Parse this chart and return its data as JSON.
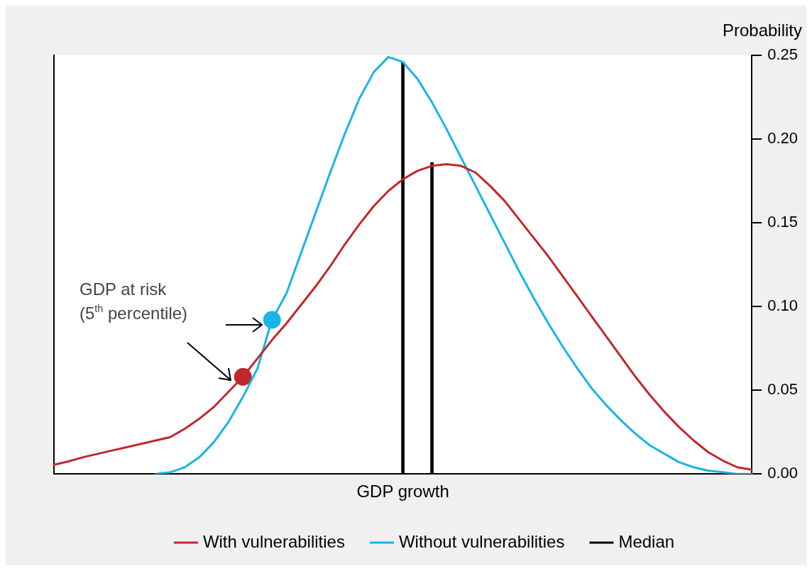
{
  "chart_data": {
    "type": "line",
    "xlabel": "GDP growth",
    "ylabel": "Probability",
    "categories": [
      null,
      null,
      null,
      null,
      null,
      null,
      null,
      null,
      null,
      null,
      null,
      null,
      null,
      null,
      null,
      null,
      null,
      null,
      null,
      null,
      null,
      null,
      null,
      null,
      null,
      null,
      null,
      null,
      null,
      null,
      null,
      null,
      null,
      null,
      null,
      null,
      null,
      null,
      null,
      null,
      null,
      null,
      null,
      null,
      null,
      null,
      null,
      null,
      null
    ],
    "ylim": [
      0,
      0.25
    ],
    "yticks": [
      {
        "value": 0,
        "label": "0.00"
      },
      {
        "value": 0.05,
        "label": "0.05"
      },
      {
        "value": 0.1,
        "label": "0.10"
      },
      {
        "value": 0.15,
        "label": "0.15"
      },
      {
        "value": 0.2,
        "label": "0.20"
      },
      {
        "value": 0.25,
        "label": "0.25"
      }
    ],
    "tick_labels": "y",
    "legend": "bottom",
    "marker": "none",
    "line_style": "solid",
    "series": [
      {
        "name": "With vulnerabilities",
        "color": "#c0282d",
        "values": [
          0.0055,
          0.0075,
          0.01,
          0.012,
          0.014,
          0.016,
          0.018,
          0.02,
          0.022,
          0.027,
          0.033,
          0.04,
          0.049,
          0.058,
          0.069,
          0.08,
          0.09,
          0.101,
          0.112,
          0.124,
          0.137,
          0.149,
          0.16,
          0.169,
          0.176,
          0.181,
          0.184,
          0.185,
          0.184,
          0.18,
          0.172,
          0.163,
          0.152,
          0.141,
          0.13,
          0.118,
          0.106,
          0.094,
          0.082,
          0.07,
          0.058,
          0.047,
          0.037,
          0.028,
          0.02,
          0.013,
          0.008,
          0.004,
          0.0025
        ]
      },
      {
        "name": "Without vulnerabilities",
        "color": "#19b4ea",
        "values": [
          null,
          null,
          null,
          null,
          null,
          null,
          null,
          0,
          0.001,
          0.004,
          0.01,
          0.019,
          0.031,
          0.046,
          0.063,
          0.092,
          0.108,
          0.132,
          0.156,
          0.18,
          0.203,
          0.224,
          0.24,
          0.249,
          0.246,
          0.236,
          0.222,
          0.206,
          0.189,
          0.172,
          0.155,
          0.138,
          0.121,
          0.105,
          0.09,
          0.076,
          0.063,
          0.051,
          0.041,
          0.032,
          0.024,
          0.017,
          0.012,
          0.007,
          0.004,
          0.002,
          0.001,
          0,
          0
        ]
      },
      {
        "name": "Median",
        "type": "bar",
        "color": "#000000",
        "values": [
          null,
          null,
          null,
          null,
          null,
          null,
          null,
          null,
          null,
          null,
          null,
          null,
          null,
          null,
          null,
          null,
          null,
          null,
          null,
          null,
          null,
          null,
          null,
          null,
          0.246,
          null,
          0.186,
          null,
          null,
          null,
          null,
          null,
          null,
          null,
          null,
          null,
          null,
          null,
          null,
          null,
          null,
          null,
          null,
          null,
          null,
          null,
          null,
          null,
          null
        ]
      },
      {
        "marker": "circle",
        "color": "#c0282d",
        "values": [
          null,
          null,
          null,
          null,
          null,
          null,
          null,
          null,
          null,
          null,
          null,
          null,
          null,
          0.058,
          null,
          null,
          null,
          null,
          null,
          null,
          null,
          null,
          null,
          null,
          null,
          null,
          null,
          null,
          null,
          null,
          null,
          null,
          null,
          null,
          null,
          null,
          null,
          null,
          null,
          null,
          null,
          null,
          null,
          null,
          null,
          null,
          null,
          null,
          null
        ]
      },
      {
        "marker": "circle",
        "color": "#19b4ea",
        "values": [
          null,
          null,
          null,
          null,
          null,
          null,
          null,
          null,
          null,
          null,
          null,
          null,
          null,
          null,
          null,
          0.092,
          null,
          null,
          null,
          null,
          null,
          null,
          null,
          null,
          null,
          null,
          null,
          null,
          null,
          null,
          null,
          null,
          null,
          null,
          null,
          null,
          null,
          null,
          null,
          null,
          null,
          null,
          null,
          null,
          null,
          null,
          null,
          null,
          null
        ]
      }
    ],
    "annotations": [
      "GDP at risk\n(5$^{th}$ percentile)"
    ]
  }
}
